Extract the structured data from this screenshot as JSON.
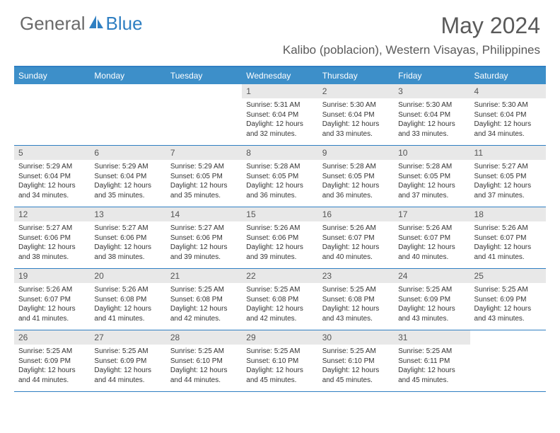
{
  "logo": {
    "text1": "General",
    "text2": "Blue"
  },
  "title": "May 2024",
  "location": "Kalibo (poblacion), Western Visayas, Philippines",
  "colors": {
    "header_bg": "#3d8fc9",
    "border": "#2f7fc2",
    "gray_bar": "#e8e8e8",
    "text_dark": "#333333",
    "text_gray": "#5a5a5a",
    "logo_gray": "#6a6a6a",
    "logo_blue": "#2f7fc2",
    "white": "#ffffff"
  },
  "day_headers": [
    "Sunday",
    "Monday",
    "Tuesday",
    "Wednesday",
    "Thursday",
    "Friday",
    "Saturday"
  ],
  "weeks": [
    [
      {
        "n": "",
        "sr": "",
        "ss": "",
        "dl": ""
      },
      {
        "n": "",
        "sr": "",
        "ss": "",
        "dl": ""
      },
      {
        "n": "",
        "sr": "",
        "ss": "",
        "dl": ""
      },
      {
        "n": "1",
        "sr": "5:31 AM",
        "ss": "6:04 PM",
        "dl": "12 hours and 32 minutes."
      },
      {
        "n": "2",
        "sr": "5:30 AM",
        "ss": "6:04 PM",
        "dl": "12 hours and 33 minutes."
      },
      {
        "n": "3",
        "sr": "5:30 AM",
        "ss": "6:04 PM",
        "dl": "12 hours and 33 minutes."
      },
      {
        "n": "4",
        "sr": "5:30 AM",
        "ss": "6:04 PM",
        "dl": "12 hours and 34 minutes."
      }
    ],
    [
      {
        "n": "5",
        "sr": "5:29 AM",
        "ss": "6:04 PM",
        "dl": "12 hours and 34 minutes."
      },
      {
        "n": "6",
        "sr": "5:29 AM",
        "ss": "6:04 PM",
        "dl": "12 hours and 35 minutes."
      },
      {
        "n": "7",
        "sr": "5:29 AM",
        "ss": "6:05 PM",
        "dl": "12 hours and 35 minutes."
      },
      {
        "n": "8",
        "sr": "5:28 AM",
        "ss": "6:05 PM",
        "dl": "12 hours and 36 minutes."
      },
      {
        "n": "9",
        "sr": "5:28 AM",
        "ss": "6:05 PM",
        "dl": "12 hours and 36 minutes."
      },
      {
        "n": "10",
        "sr": "5:28 AM",
        "ss": "6:05 PM",
        "dl": "12 hours and 37 minutes."
      },
      {
        "n": "11",
        "sr": "5:27 AM",
        "ss": "6:05 PM",
        "dl": "12 hours and 37 minutes."
      }
    ],
    [
      {
        "n": "12",
        "sr": "5:27 AM",
        "ss": "6:06 PM",
        "dl": "12 hours and 38 minutes."
      },
      {
        "n": "13",
        "sr": "5:27 AM",
        "ss": "6:06 PM",
        "dl": "12 hours and 38 minutes."
      },
      {
        "n": "14",
        "sr": "5:27 AM",
        "ss": "6:06 PM",
        "dl": "12 hours and 39 minutes."
      },
      {
        "n": "15",
        "sr": "5:26 AM",
        "ss": "6:06 PM",
        "dl": "12 hours and 39 minutes."
      },
      {
        "n": "16",
        "sr": "5:26 AM",
        "ss": "6:07 PM",
        "dl": "12 hours and 40 minutes."
      },
      {
        "n": "17",
        "sr": "5:26 AM",
        "ss": "6:07 PM",
        "dl": "12 hours and 40 minutes."
      },
      {
        "n": "18",
        "sr": "5:26 AM",
        "ss": "6:07 PM",
        "dl": "12 hours and 41 minutes."
      }
    ],
    [
      {
        "n": "19",
        "sr": "5:26 AM",
        "ss": "6:07 PM",
        "dl": "12 hours and 41 minutes."
      },
      {
        "n": "20",
        "sr": "5:26 AM",
        "ss": "6:08 PM",
        "dl": "12 hours and 41 minutes."
      },
      {
        "n": "21",
        "sr": "5:25 AM",
        "ss": "6:08 PM",
        "dl": "12 hours and 42 minutes."
      },
      {
        "n": "22",
        "sr": "5:25 AM",
        "ss": "6:08 PM",
        "dl": "12 hours and 42 minutes."
      },
      {
        "n": "23",
        "sr": "5:25 AM",
        "ss": "6:08 PM",
        "dl": "12 hours and 43 minutes."
      },
      {
        "n": "24",
        "sr": "5:25 AM",
        "ss": "6:09 PM",
        "dl": "12 hours and 43 minutes."
      },
      {
        "n": "25",
        "sr": "5:25 AM",
        "ss": "6:09 PM",
        "dl": "12 hours and 43 minutes."
      }
    ],
    [
      {
        "n": "26",
        "sr": "5:25 AM",
        "ss": "6:09 PM",
        "dl": "12 hours and 44 minutes."
      },
      {
        "n": "27",
        "sr": "5:25 AM",
        "ss": "6:09 PM",
        "dl": "12 hours and 44 minutes."
      },
      {
        "n": "28",
        "sr": "5:25 AM",
        "ss": "6:10 PM",
        "dl": "12 hours and 44 minutes."
      },
      {
        "n": "29",
        "sr": "5:25 AM",
        "ss": "6:10 PM",
        "dl": "12 hours and 45 minutes."
      },
      {
        "n": "30",
        "sr": "5:25 AM",
        "ss": "6:10 PM",
        "dl": "12 hours and 45 minutes."
      },
      {
        "n": "31",
        "sr": "5:25 AM",
        "ss": "6:11 PM",
        "dl": "12 hours and 45 minutes."
      },
      {
        "n": "",
        "sr": "",
        "ss": "",
        "dl": ""
      }
    ]
  ],
  "labels": {
    "sunrise": "Sunrise:",
    "sunset": "Sunset:",
    "daylight": "Daylight:"
  }
}
